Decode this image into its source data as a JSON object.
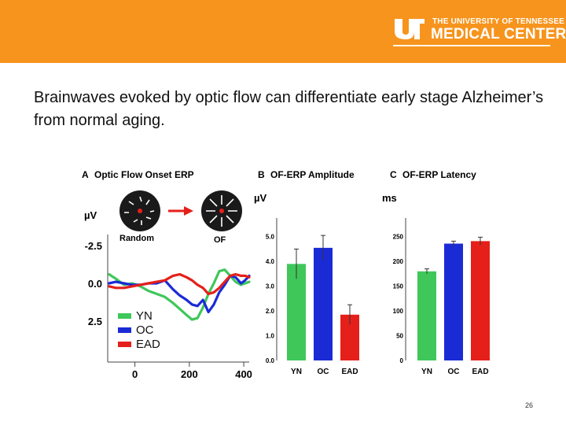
{
  "header": {
    "background_color": "#f7941d",
    "logo_line1": "THE UNIVERSITY OF TENNESSEE",
    "logo_line2": "MEDICAL CENTER",
    "logo_mark": "UT"
  },
  "headline": "Brainwaves evoked by optic flow can differentiate early stage Alzheimer’s from normal aging.",
  "page_number": "26",
  "colors": {
    "YN": "#3fc75a",
    "OC": "#1a2bd6",
    "EAD": "#e5201a"
  },
  "chart_data": [
    {
      "type": "line",
      "panel_letter": "A",
      "title": "Optic Flow Onset ERP",
      "ylabel": "µV",
      "x_ticks": [
        "0",
        "200",
        "400"
      ],
      "y_ticks": [
        "-2.5",
        "0.0",
        "2.5"
      ],
      "xlim": [
        -100,
        420
      ],
      "ylim": [
        -2.5,
        2.5
      ],
      "y_inverted": true,
      "stimulus_labels": [
        "Random",
        "OF"
      ],
      "legend": [
        "YN",
        "OC",
        "EAD"
      ],
      "legend_placement": "bottom-left",
      "series": [
        {
          "name": "YN",
          "color": "#3fc75a",
          "x": [
            -95,
            -70,
            -40,
            -10,
            20,
            50,
            80,
            110,
            140,
            165,
            190,
            210,
            230,
            250,
            270,
            290,
            310,
            330,
            350,
            370,
            390,
            405,
            420
          ],
          "y": [
            -0.6,
            -0.3,
            0.1,
            0.0,
            0.2,
            0.5,
            0.7,
            0.9,
            1.3,
            1.7,
            2.1,
            2.4,
            2.3,
            1.6,
            0.7,
            0.0,
            -0.8,
            -0.9,
            -0.5,
            -0.1,
            0.1,
            0.0,
            -0.1
          ]
        },
        {
          "name": "OC",
          "color": "#1a2bd6",
          "x": [
            -95,
            -70,
            -40,
            -10,
            20,
            50,
            80,
            110,
            140,
            165,
            190,
            210,
            230,
            250,
            270,
            290,
            310,
            330,
            350,
            370,
            390,
            405,
            420
          ],
          "y": [
            0.0,
            -0.1,
            0.0,
            0.1,
            0.1,
            0.0,
            0.0,
            -0.2,
            0.4,
            0.8,
            1.1,
            1.4,
            1.5,
            1.1,
            1.9,
            1.4,
            0.6,
            0.1,
            -0.5,
            -0.4,
            0.0,
            -0.2,
            -0.5
          ]
        },
        {
          "name": "EAD",
          "color": "#e5201a",
          "x": [
            -95,
            -70,
            -40,
            -10,
            20,
            50,
            80,
            110,
            140,
            165,
            190,
            210,
            230,
            250,
            270,
            290,
            310,
            330,
            350,
            370,
            390,
            405,
            420
          ],
          "y": [
            0.2,
            0.3,
            0.3,
            0.2,
            0.1,
            0.0,
            -0.1,
            -0.2,
            -0.5,
            -0.6,
            -0.4,
            -0.2,
            0.1,
            0.3,
            0.7,
            0.6,
            0.3,
            -0.1,
            -0.5,
            -0.6,
            -0.5,
            -0.5,
            -0.4
          ]
        }
      ]
    },
    {
      "type": "bar",
      "panel_letter": "B",
      "title": "OF-ERP Amplitude",
      "ylabel": "µV",
      "categories": [
        "YN",
        "OC",
        "EAD"
      ],
      "values": [
        3.9,
        4.55,
        1.85
      ],
      "errors": [
        0.6,
        0.5,
        0.4
      ],
      "ylim": [
        0,
        5.5
      ],
      "y_ticks": [
        "0.0",
        "1.0",
        "2.0",
        "3.0",
        "4.0",
        "5.0"
      ]
    },
    {
      "type": "bar",
      "panel_letter": "C",
      "title": "OF-ERP Latency",
      "ylabel": "ms",
      "categories": [
        "YN",
        "OC",
        "EAD"
      ],
      "values": [
        180,
        236,
        241
      ],
      "errors": [
        5,
        5,
        8
      ],
      "ylim": [
        0,
        275
      ],
      "y_ticks": [
        "0",
        "50",
        "100",
        "150",
        "200",
        "250"
      ]
    }
  ]
}
